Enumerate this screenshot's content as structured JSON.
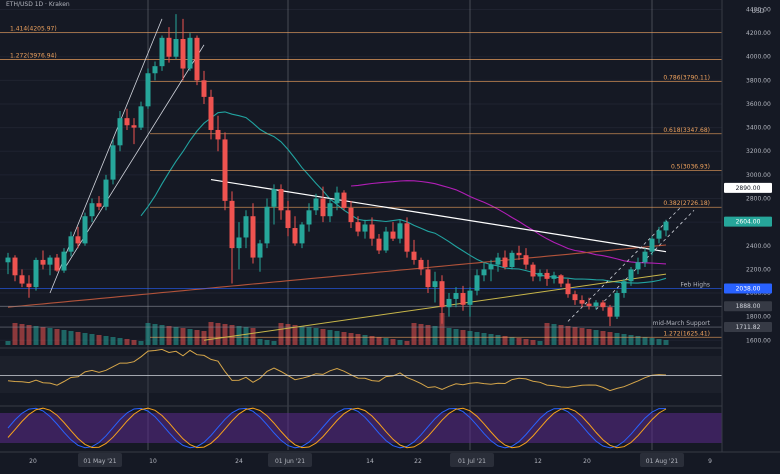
{
  "header_text": "ETH/USD 1D · Kraken",
  "price_axis": {
    "unit_label": "USD",
    "ticks": [
      "4400.00",
      "4200.00",
      "4000.00",
      "3800.00",
      "3600.00",
      "3400.00",
      "3200.00",
      "3000.00",
      "2800.00",
      "2600.00",
      "2400.00",
      "2200.00",
      "2000.00",
      "1800.00",
      "1600.00"
    ]
  },
  "time_axis": {
    "labels": [
      "20",
      "01 May '21",
      "10",
      "24",
      "01 Jun '21",
      "14",
      "22",
      "01 Jul '21",
      "12",
      "20",
      "01 Aug '21",
      "9"
    ],
    "highlighted": [
      "01 May '21",
      "01 Jun '21",
      "01 Jul '21",
      "01 Aug '21"
    ]
  },
  "fib_levels": [
    {
      "label": "1.414(4205.97)",
      "price": 4205.97,
      "side": "left"
    },
    {
      "label": "1.272(3976.94)",
      "price": 3976.94,
      "side": "left"
    },
    {
      "label": "0.786(3790.11)",
      "price": 3790.11,
      "side": "right"
    },
    {
      "label": "0.618(3347.68)",
      "price": 3347.68,
      "side": "right"
    },
    {
      "label": "0.5(3036.93)",
      "price": 3036.93,
      "side": "right"
    },
    {
      "label": "0.382(2726.18)",
      "price": 2726.18,
      "side": "right"
    },
    {
      "label": "1.272(1625.41)",
      "price": 1625.41,
      "side": "right"
    }
  ],
  "level_labels": [
    {
      "text": "Feb Highs",
      "price": 2040
    },
    {
      "text": "mid-March Support",
      "price": 1711.82
    }
  ],
  "price_tags": [
    {
      "text": "2890.00",
      "price": 2890,
      "style": "white"
    },
    {
      "text": "2604.00",
      "price": 2604,
      "style": "teal"
    },
    {
      "text": "2038.00",
      "price": 2038,
      "style": "blue"
    },
    {
      "text": "1888.00",
      "price": 1888,
      "style": "gray"
    },
    {
      "text": "1711.82",
      "price": 1711.82,
      "style": "gray"
    }
  ],
  "rsi": {
    "value_label": "51.88",
    "ticks": [
      "80.00",
      "60.00",
      "40.00",
      "20.00"
    ]
  },
  "stoch": {
    "ticks": [
      "100.00",
      "50.00",
      "0.00"
    ]
  },
  "colors": {
    "up": "#26a69a",
    "down": "#ef5350",
    "fib": "#f0a35e",
    "ma_teal": "#21a3a0",
    "ma_magenta": "#b11eb6",
    "ma_brown": "#b2533a",
    "trend_white": "#ffffff",
    "trend_yellow": "#c9b74a"
  },
  "chart_data": {
    "type": "candlestick",
    "symbol": "ETH/USD",
    "interval": "1D",
    "yaxis": {
      "range": [
        1560,
        4480
      ],
      "unit": "USD"
    },
    "candles": [
      [
        2260,
        2340,
        2160,
        2300
      ],
      [
        2300,
        2320,
        2100,
        2150
      ],
      [
        2150,
        2200,
        2050,
        2080
      ],
      [
        2080,
        2150,
        1960,
        2050
      ],
      [
        2050,
        2300,
        2020,
        2280
      ],
      [
        2280,
        2360,
        2200,
        2240
      ],
      [
        2240,
        2320,
        2150,
        2300
      ],
      [
        2300,
        2330,
        2180,
        2190
      ],
      [
        2190,
        2380,
        2170,
        2350
      ],
      [
        2350,
        2520,
        2310,
        2480
      ],
      [
        2480,
        2560,
        2380,
        2420
      ],
      [
        2420,
        2680,
        2400,
        2650
      ],
      [
        2650,
        2800,
        2600,
        2760
      ],
      [
        2760,
        2820,
        2700,
        2730
      ],
      [
        2730,
        3000,
        2700,
        2960
      ],
      [
        2960,
        3300,
        2920,
        3250
      ],
      [
        3250,
        3540,
        3200,
        3480
      ],
      [
        3480,
        3560,
        3380,
        3420
      ],
      [
        3420,
        3480,
        3260,
        3400
      ],
      [
        3400,
        3620,
        3380,
        3580
      ],
      [
        3580,
        3900,
        3560,
        3860
      ],
      [
        3860,
        3960,
        3800,
        3920
      ],
      [
        3920,
        4180,
        3880,
        4160
      ],
      [
        4160,
        4250,
        3950,
        4000
      ],
      [
        4000,
        4360,
        3980,
        4150
      ],
      [
        4150,
        4320,
        3800,
        3900
      ],
      [
        3900,
        4200,
        3880,
        4160
      ],
      [
        4160,
        4180,
        3760,
        3800
      ],
      [
        3800,
        3880,
        3600,
        3660
      ],
      [
        3660,
        3720,
        3300,
        3380
      ],
      [
        3380,
        3500,
        3200,
        3300
      ],
      [
        3300,
        3360,
        2700,
        2780
      ],
      [
        2780,
        2860,
        2080,
        2380
      ],
      [
        2380,
        2600,
        2200,
        2470
      ],
      [
        2470,
        2700,
        2380,
        2650
      ],
      [
        2650,
        2760,
        2250,
        2300
      ],
      [
        2300,
        2450,
        2180,
        2420
      ],
      [
        2420,
        2800,
        2380,
        2730
      ],
      [
        2730,
        2920,
        2580,
        2880
      ],
      [
        2880,
        2920,
        2620,
        2700
      ],
      [
        2700,
        2780,
        2480,
        2550
      ],
      [
        2550,
        2650,
        2400,
        2420
      ],
      [
        2420,
        2600,
        2380,
        2580
      ],
      [
        2580,
        2760,
        2520,
        2700
      ],
      [
        2700,
        2840,
        2660,
        2800
      ],
      [
        2800,
        2900,
        2600,
        2650
      ],
      [
        2650,
        2800,
        2600,
        2760
      ],
      [
        2760,
        2900,
        2700,
        2850
      ],
      [
        2850,
        2870,
        2700,
        2720
      ],
      [
        2720,
        2780,
        2550,
        2600
      ],
      [
        2600,
        2650,
        2480,
        2520
      ],
      [
        2520,
        2620,
        2460,
        2580
      ],
      [
        2580,
        2640,
        2400,
        2460
      ],
      [
        2460,
        2500,
        2330,
        2360
      ],
      [
        2360,
        2560,
        2340,
        2520
      ],
      [
        2520,
        2600,
        2440,
        2460
      ],
      [
        2460,
        2620,
        2420,
        2590
      ],
      [
        2590,
        2640,
        2300,
        2350
      ],
      [
        2350,
        2450,
        2240,
        2280
      ],
      [
        2280,
        2300,
        2150,
        2200
      ],
      [
        2200,
        2280,
        2000,
        2050
      ],
      [
        2050,
        2180,
        1920,
        2100
      ],
      [
        2100,
        2150,
        1740,
        1880
      ],
      [
        1880,
        2000,
        1800,
        1950
      ],
      [
        1950,
        2050,
        1880,
        2000
      ],
      [
        2000,
        2060,
        1850,
        1900
      ],
      [
        1900,
        2050,
        1800,
        2020
      ],
      [
        2020,
        2200,
        1980,
        2150
      ],
      [
        2150,
        2260,
        2100,
        2200
      ],
      [
        2200,
        2280,
        2100,
        2240
      ],
      [
        2240,
        2340,
        2180,
        2300
      ],
      [
        2300,
        2360,
        2200,
        2220
      ],
      [
        2220,
        2360,
        2200,
        2340
      ],
      [
        2340,
        2400,
        2280,
        2320
      ],
      [
        2320,
        2380,
        2200,
        2240
      ],
      [
        2240,
        2260,
        2100,
        2140
      ],
      [
        2140,
        2200,
        2100,
        2170
      ],
      [
        2170,
        2200,
        2060,
        2120
      ],
      [
        2120,
        2180,
        2080,
        2150
      ],
      [
        2150,
        2160,
        2050,
        2080
      ],
      [
        2080,
        2120,
        1960,
        1990
      ],
      [
        1990,
        2020,
        1900,
        1940
      ],
      [
        1940,
        1980,
        1880,
        1910
      ],
      [
        1910,
        1960,
        1860,
        1890
      ],
      [
        1890,
        1940,
        1860,
        1920
      ],
      [
        1920,
        1940,
        1850,
        1880
      ],
      [
        1880,
        1900,
        1720,
        1800
      ],
      [
        1800,
        2020,
        1780,
        2000
      ],
      [
        2000,
        2120,
        1960,
        2100
      ],
      [
        2100,
        2220,
        2060,
        2200
      ],
      [
        2200,
        2300,
        2160,
        2260
      ],
      [
        2260,
        2380,
        2220,
        2350
      ],
      [
        2350,
        2480,
        2320,
        2460
      ],
      [
        2460,
        2560,
        2420,
        2530
      ],
      [
        2530,
        2620,
        2480,
        2604
      ]
    ],
    "volume_shown": true,
    "indicators": [
      "20 MA",
      "50 MA",
      "200 MA",
      "RSI",
      "Stochastic RSI"
    ]
  }
}
